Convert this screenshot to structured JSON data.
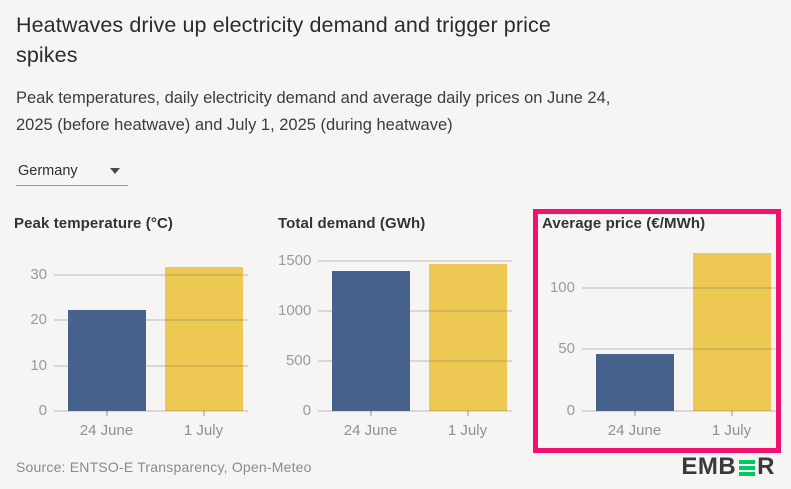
{
  "header": {
    "title_lines": [
      "Heatwaves drive up electricity demand and trigger price",
      "spikes"
    ],
    "subtitle_lines": [
      "Peak temperatures, daily electricity demand and average daily prices on June 24,",
      "2025 (before heatwave) and July 1, 2025 (during heatwave)"
    ]
  },
  "dropdown": {
    "value": "Germany"
  },
  "chart_data": [
    {
      "type": "bar",
      "title": "Peak temperature (°C)",
      "categories": [
        "24 June",
        "1 July"
      ],
      "values": [
        22.3,
        31.8
      ],
      "yticks": [
        0,
        10,
        20,
        30
      ],
      "ylim": [
        0,
        35.3
      ],
      "grid": true,
      "legend": "none"
    },
    {
      "type": "bar",
      "title": "Total demand (GWh)",
      "categories": [
        "24 June",
        "1 July"
      ],
      "values": [
        1400,
        1475
      ],
      "yticks": [
        0,
        500,
        1000,
        1500
      ],
      "ylim": [
        0,
        1600
      ],
      "grid": true,
      "legend": "none"
    },
    {
      "type": "bar",
      "title": "Average price (€/MWh)",
      "categories": [
        "24 June",
        "1 July"
      ],
      "values": [
        46,
        128
      ],
      "yticks": [
        0,
        50,
        100
      ],
      "ylim": [
        0,
        130
      ],
      "grid": true,
      "legend": "none",
      "highlighted": true
    }
  ],
  "annotation": {
    "highlighted_chart": "Average price (€/MWh)"
  },
  "footer": {
    "source": "Source: ENTSO-E Transparency, Open-Meteo",
    "logo_left": "EMB",
    "logo_right": "R"
  },
  "colors": {
    "bar_24_june": "#46618B",
    "bar_1_july": "#EDC954",
    "highlight": "#F0126E",
    "ember_green": "#00C966",
    "background": "#F6F5F3"
  }
}
